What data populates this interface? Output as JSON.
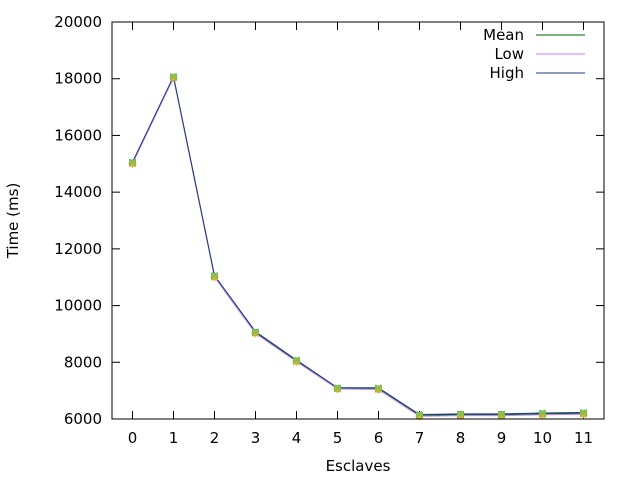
{
  "chart_data": {
    "type": "line",
    "title": "",
    "xlabel": "Esclaves",
    "ylabel": "Time (ms)",
    "x": [
      0,
      1,
      2,
      3,
      4,
      5,
      6,
      7,
      8,
      9,
      10,
      11
    ],
    "xlim": [
      -0.5,
      11.5
    ],
    "ylim": [
      6000,
      20000
    ],
    "yticks": [
      6000,
      8000,
      10000,
      12000,
      14000,
      16000,
      18000,
      20000
    ],
    "grid": false,
    "legend_position": "top-right",
    "series": [
      {
        "name": "Mean",
        "color": "#006400",
        "values": [
          15030,
          18050,
          11030,
          9050,
          8050,
          7080,
          7060,
          6130,
          6150,
          6150,
          6180,
          6200
        ]
      },
      {
        "name": "Low",
        "color": "#c080ff",
        "values": [
          15000,
          18030,
          11000,
          9020,
          8020,
          7060,
          7040,
          6100,
          6120,
          6120,
          6150,
          6170
        ]
      },
      {
        "name": "High",
        "color": "#1a3a7a",
        "values": [
          15060,
          18080,
          11060,
          9080,
          8080,
          7100,
          7100,
          6160,
          6180,
          6180,
          6210,
          6230
        ]
      }
    ],
    "marker_colors": [
      "#00c0c0",
      "#e8b020",
      "#7fbf4f"
    ]
  }
}
